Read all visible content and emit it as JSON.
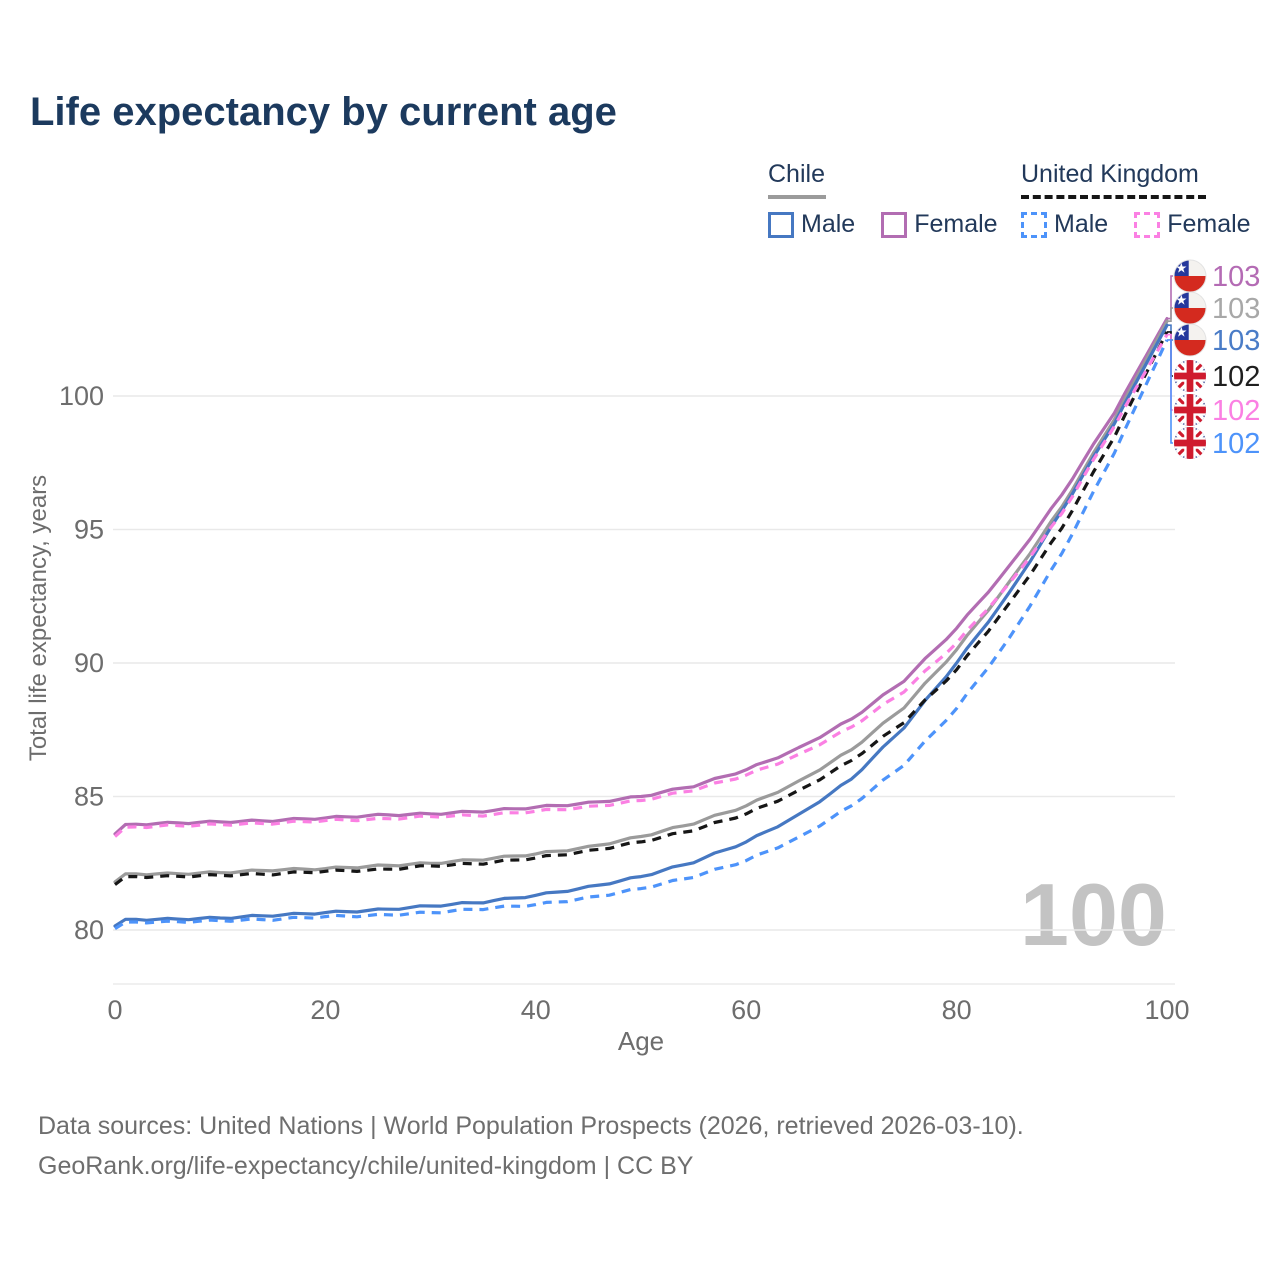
{
  "title": "Life expectancy by current age",
  "legend": {
    "chile": {
      "label": "Chile",
      "male": "Male",
      "female": "Female"
    },
    "uk": {
      "label": "United Kingdom",
      "male": "Male",
      "female": "Female"
    }
  },
  "watermark_age": "100",
  "footer": {
    "line1": "Data sources: United Nations | World Population Prospects (2026, retrieved 2026-03-10).",
    "line2": "GeoRank.org/life-expectancy/chile/united-kingdom | CC BY"
  },
  "chart_data": {
    "type": "line",
    "title": "Life expectancy by current age",
    "xlabel": "Age",
    "ylabel": "Total life expectancy, years",
    "x_ticks": [
      0,
      20,
      40,
      60,
      80,
      100
    ],
    "y_ticks": [
      80,
      85,
      90,
      95,
      100
    ],
    "xlim": [
      0,
      100
    ],
    "ylim": [
      79,
      103.5
    ],
    "grid": "horizontal",
    "legend_position": "top-right",
    "x": [
      0,
      1,
      5,
      10,
      15,
      20,
      25,
      30,
      35,
      40,
      45,
      50,
      55,
      60,
      65,
      70,
      75,
      80,
      85,
      90,
      95,
      100
    ],
    "series": [
      {
        "id": "chile-female",
        "name": "Chile Female",
        "country": "Chile",
        "sex": "Female",
        "style": "solid",
        "color": "#b26db2",
        "flag": "chile",
        "end_label": "103",
        "end_label_color": "#b46bb4",
        "values": [
          83.6,
          83.95,
          84.0,
          84.05,
          84.1,
          84.2,
          84.3,
          84.35,
          84.45,
          84.6,
          84.75,
          85.0,
          85.4,
          86.0,
          86.8,
          87.9,
          89.35,
          91.3,
          93.6,
          96.3,
          99.4,
          102.9
        ]
      },
      {
        "id": "chile-all",
        "name": "Chile Both sexes",
        "country": "Chile",
        "sex": "Both",
        "style": "solid",
        "color": "#9b9b9b",
        "flag": "chile",
        "end_label": "103",
        "end_label_color": "#a8a8a8",
        "values": [
          81.8,
          82.1,
          82.1,
          82.15,
          82.25,
          82.3,
          82.4,
          82.5,
          82.65,
          82.85,
          83.1,
          83.5,
          84.0,
          84.65,
          85.55,
          86.75,
          88.35,
          90.5,
          93.0,
          95.85,
          99.15,
          102.8
        ]
      },
      {
        "id": "chile-male",
        "name": "Chile Male",
        "country": "Chile",
        "sex": "Male",
        "style": "solid",
        "color": "#4678c2",
        "flag": "chile",
        "end_label": "103",
        "end_label_color": "#4a7cc7",
        "values": [
          80.15,
          80.4,
          80.4,
          80.45,
          80.55,
          80.65,
          80.75,
          80.9,
          81.05,
          81.3,
          81.6,
          82.0,
          82.55,
          83.3,
          84.3,
          85.65,
          87.6,
          90.0,
          92.6,
          95.7,
          99.0,
          102.65
        ]
      },
      {
        "id": "uk-all",
        "name": "United Kingdom Both sexes",
        "country": "United Kingdom",
        "sex": "Both",
        "style": "dashed",
        "color": "#161616",
        "flag": "uk",
        "end_label": "102",
        "end_label_color": "#1f1f1f",
        "values": [
          81.7,
          82.0,
          82.0,
          82.05,
          82.1,
          82.2,
          82.25,
          82.4,
          82.5,
          82.7,
          82.95,
          83.3,
          83.75,
          84.35,
          85.2,
          86.35,
          87.8,
          89.75,
          92.2,
          95.05,
          98.5,
          102.4
        ]
      },
      {
        "id": "uk-female",
        "name": "United Kingdom Female",
        "country": "United Kingdom",
        "sex": "Female",
        "style": "dashed",
        "color": "#fb80e3",
        "flag": "uk",
        "end_label": "102",
        "end_label_color": "#fb80e3",
        "values": [
          83.5,
          83.85,
          83.9,
          83.95,
          84.0,
          84.1,
          84.15,
          84.25,
          84.3,
          84.45,
          84.6,
          84.85,
          85.25,
          85.8,
          86.55,
          87.6,
          88.95,
          90.75,
          92.95,
          95.6,
          98.9,
          102.3
        ]
      },
      {
        "id": "uk-male",
        "name": "United Kingdom Male",
        "country": "United Kingdom",
        "sex": "Male",
        "style": "dashed",
        "color": "#4d93fa",
        "flag": "uk",
        "end_label": "102",
        "end_label_color": "#4d93fa",
        "values": [
          80.05,
          80.3,
          80.3,
          80.35,
          80.4,
          80.5,
          80.55,
          80.65,
          80.8,
          80.95,
          81.2,
          81.55,
          82.0,
          82.6,
          83.45,
          84.65,
          86.2,
          88.3,
          90.9,
          94.1,
          97.9,
          102.1
        ]
      }
    ],
    "colors": {
      "grid": "#e9e9e9",
      "axis_text": "#6d6d6d",
      "chile_flag_blue": "#25389c",
      "chile_flag_red": "#d42a1f",
      "uk_flag_blue": "#15267d",
      "uk_flag_red": "#cf1b2e"
    }
  }
}
